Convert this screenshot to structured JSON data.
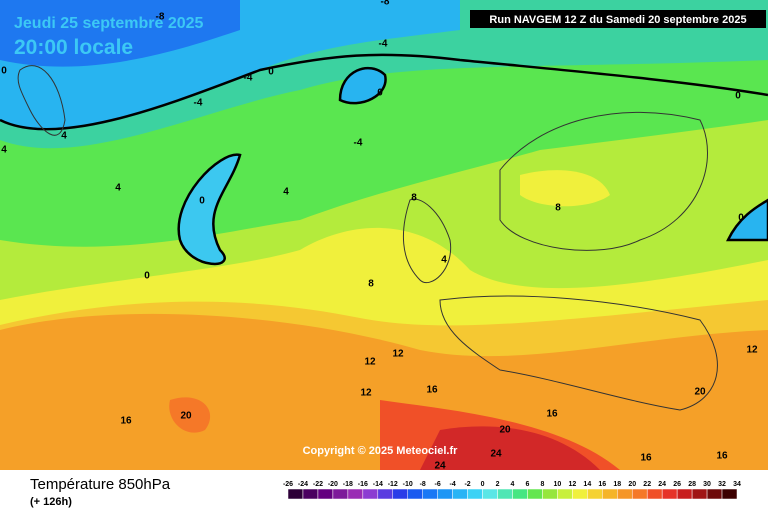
{
  "header": {
    "title": "Jeudi 25 septembre 2025",
    "subtitle": "20:00 locale",
    "run": "Run NAVGEM 12 Z du Samedi 20 septembre 2025"
  },
  "map": {
    "copyright": "Copyright © 2025 Meteociel.fr",
    "contour_labels": [
      -8,
      -8,
      -4,
      -4,
      0,
      0,
      -4,
      0,
      4,
      4,
      -4,
      4,
      4,
      0,
      8,
      0,
      0,
      4,
      0,
      8,
      8,
      12,
      12,
      12,
      16,
      16,
      20,
      20,
      16,
      20,
      24,
      24,
      16,
      16,
      12
    ]
  },
  "footer": {
    "title": "Température 850hPa",
    "lead": "(+ 126h)",
    "legend": {
      "labels": [
        -26,
        -24,
        -22,
        -20,
        -18,
        -16,
        -14,
        -12,
        -10,
        -8,
        -6,
        -4,
        -2,
        0,
        2,
        4,
        6,
        8,
        10,
        12,
        14,
        16,
        18,
        20,
        22,
        24,
        26,
        28,
        30,
        32,
        34
      ],
      "colors": [
        "#2d0038",
        "#4a0060",
        "#640080",
        "#7d1a9a",
        "#9a2cb4",
        "#8c3cd2",
        "#5a3ce0",
        "#2a3ce8",
        "#1a5af0",
        "#1a78f5",
        "#1e96f5",
        "#28b4f5",
        "#3cd2f5",
        "#5ae6e6",
        "#50e6b4",
        "#46e682",
        "#64e650",
        "#96e63c",
        "#c8f03c",
        "#f0f03c",
        "#f5d232",
        "#f5b428",
        "#f59628",
        "#f57828",
        "#f05028",
        "#e63228",
        "#c81e1e",
        "#a01414",
        "#6e0a0a",
        "#3c0000"
      ]
    }
  }
}
